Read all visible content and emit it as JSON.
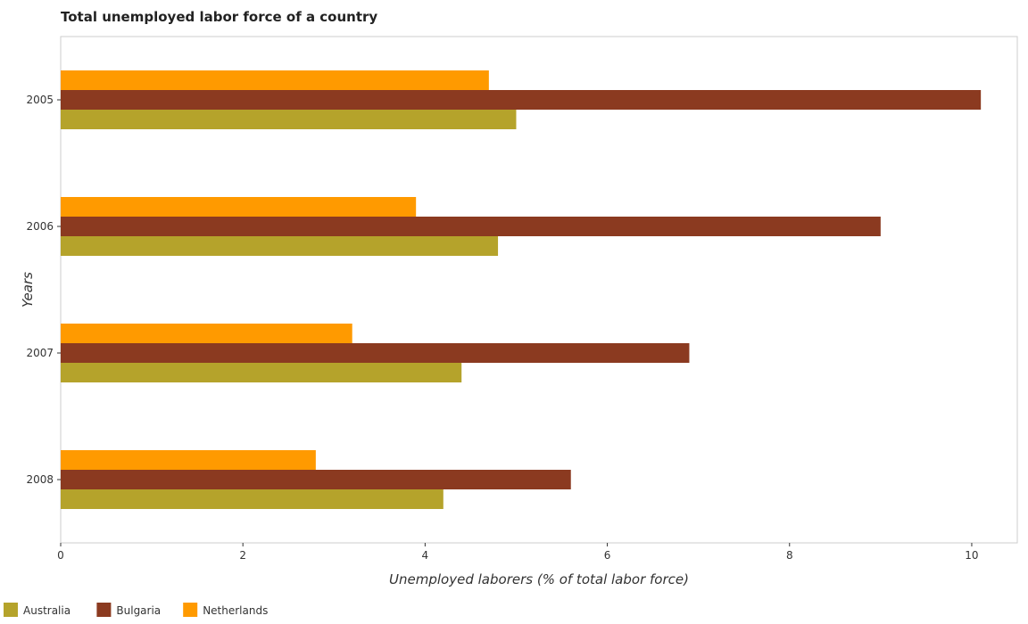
{
  "chart_data": {
    "type": "bar",
    "orientation": "horizontal",
    "title": "Total unemployed labor force of a country",
    "xlabel": "Unemployed laborers (% of total labor force)",
    "ylabel": "Years",
    "categories": [
      "2005",
      "2006",
      "2007",
      "2008"
    ],
    "series": [
      {
        "name": "Australia",
        "color": "#b5a32b",
        "values": [
          5.0,
          4.8,
          4.4,
          4.2
        ]
      },
      {
        "name": "Bulgaria",
        "color": "#8b3a20",
        "values": [
          10.1,
          9.0,
          6.9,
          5.6
        ]
      },
      {
        "name": "Netherlands",
        "color": "#ff9a00",
        "values": [
          4.7,
          3.9,
          3.2,
          2.8
        ]
      }
    ],
    "xlim": [
      0,
      10.5
    ],
    "xticks": [
      0,
      2,
      4,
      6,
      8,
      10
    ],
    "grid": false,
    "legend_position": "bottom-left"
  }
}
